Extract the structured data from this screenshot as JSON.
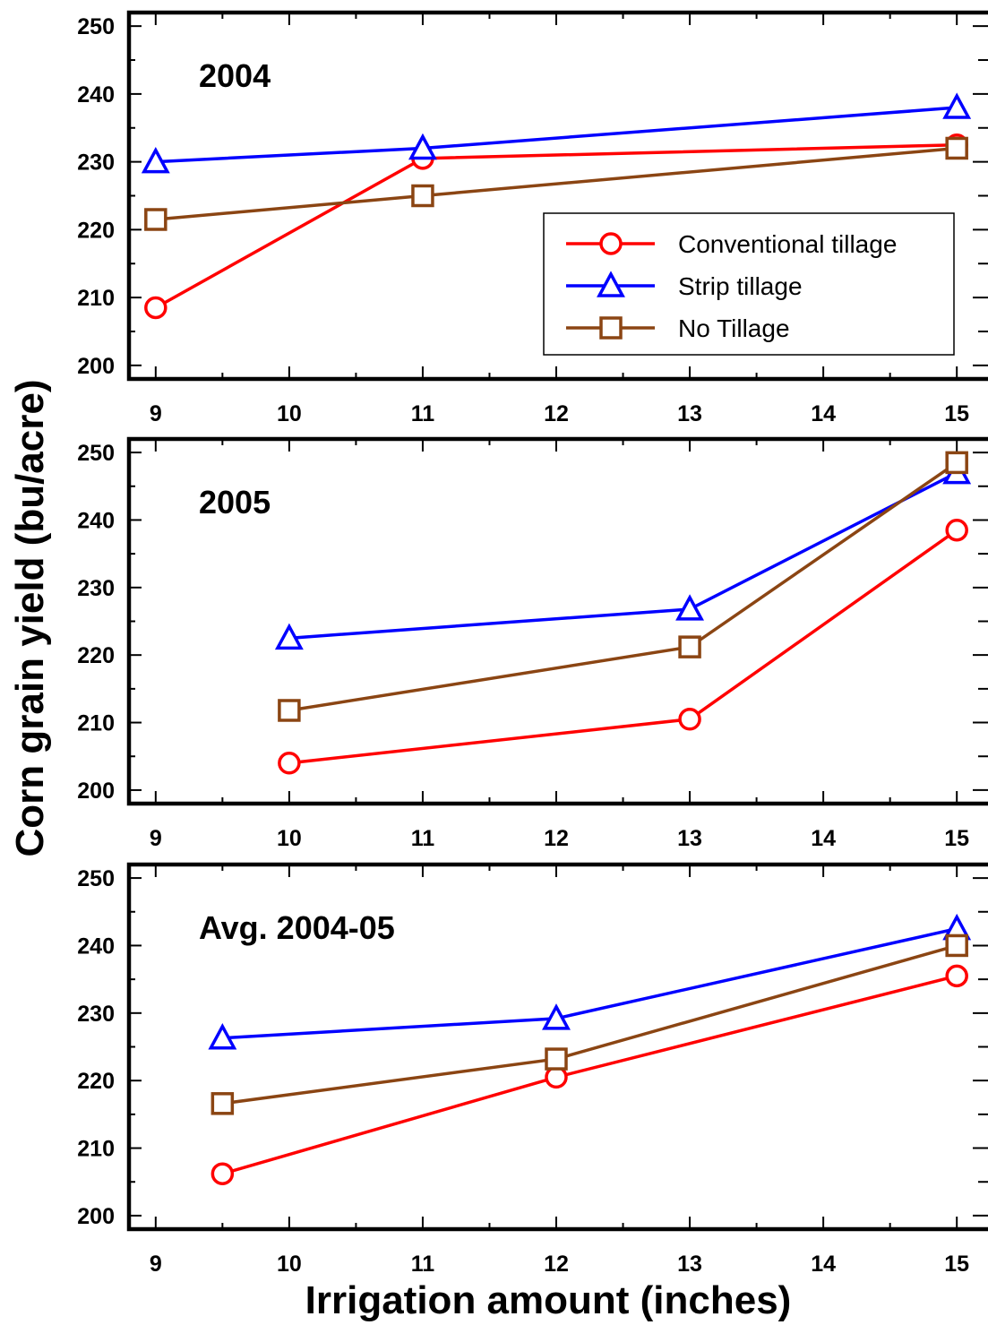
{
  "chart_data": {
    "type": "line",
    "ylabel": "Corn grain yield (bu/acre)",
    "xlabel": "Irrigation amount (inches)",
    "xlim": [
      8.8,
      15.2
    ],
    "ylim": [
      198,
      252
    ],
    "x_ticks": [
      9,
      10,
      11,
      12,
      13,
      14,
      15
    ],
    "x_tick_labels": [
      "9",
      "10",
      "11",
      "12",
      "13",
      "14",
      "15"
    ],
    "y_ticks": [
      200,
      210,
      220,
      230,
      240,
      250
    ],
    "y_tick_labels": [
      "200",
      "210",
      "220",
      "230",
      "240",
      "250"
    ],
    "legend": {
      "placement": "upper panel, right",
      "entries": [
        "Conventional tillage",
        "Strip tillage",
        "No Tillage"
      ]
    },
    "colors": {
      "Conventional tillage": "#ff0000",
      "Strip tillage": "#0000ff",
      "No Tillage": "#8b4513"
    },
    "markers": {
      "Conventional tillage": "circle",
      "Strip tillage": "triangle",
      "No Tillage": "square"
    },
    "panels": [
      {
        "title": "2004",
        "series": [
          {
            "name": "Conventional tillage",
            "x": [
              9,
              11,
              15
            ],
            "y": [
              208.5,
              230.5,
              232.5
            ]
          },
          {
            "name": "Strip tillage",
            "x": [
              9,
              11,
              15
            ],
            "y": [
              230,
              232,
              238
            ]
          },
          {
            "name": "No Tillage",
            "x": [
              9,
              11,
              15
            ],
            "y": [
              221.5,
              225,
              232
            ]
          }
        ]
      },
      {
        "title": "2005",
        "series": [
          {
            "name": "Conventional tillage",
            "x": [
              10,
              13,
              15
            ],
            "y": [
              204,
              210.5,
              238.5
            ]
          },
          {
            "name": "Strip tillage",
            "x": [
              10,
              13,
              15
            ],
            "y": [
              222.5,
              226.8,
              247
            ]
          },
          {
            "name": "No Tillage",
            "x": [
              10,
              13,
              15
            ],
            "y": [
              211.8,
              221.2,
              248.5
            ]
          }
        ]
      },
      {
        "title": "Avg. 2004-05",
        "series": [
          {
            "name": "Conventional tillage",
            "x": [
              9.5,
              12,
              15
            ],
            "y": [
              206.2,
              220.5,
              235.5
            ]
          },
          {
            "name": "Strip tillage",
            "x": [
              9.5,
              12,
              15
            ],
            "y": [
              226.3,
              229.2,
              242.5
            ]
          },
          {
            "name": "No Tillage",
            "x": [
              9.5,
              12,
              15
            ],
            "y": [
              216.6,
              223.2,
              240
            ]
          }
        ]
      }
    ]
  }
}
